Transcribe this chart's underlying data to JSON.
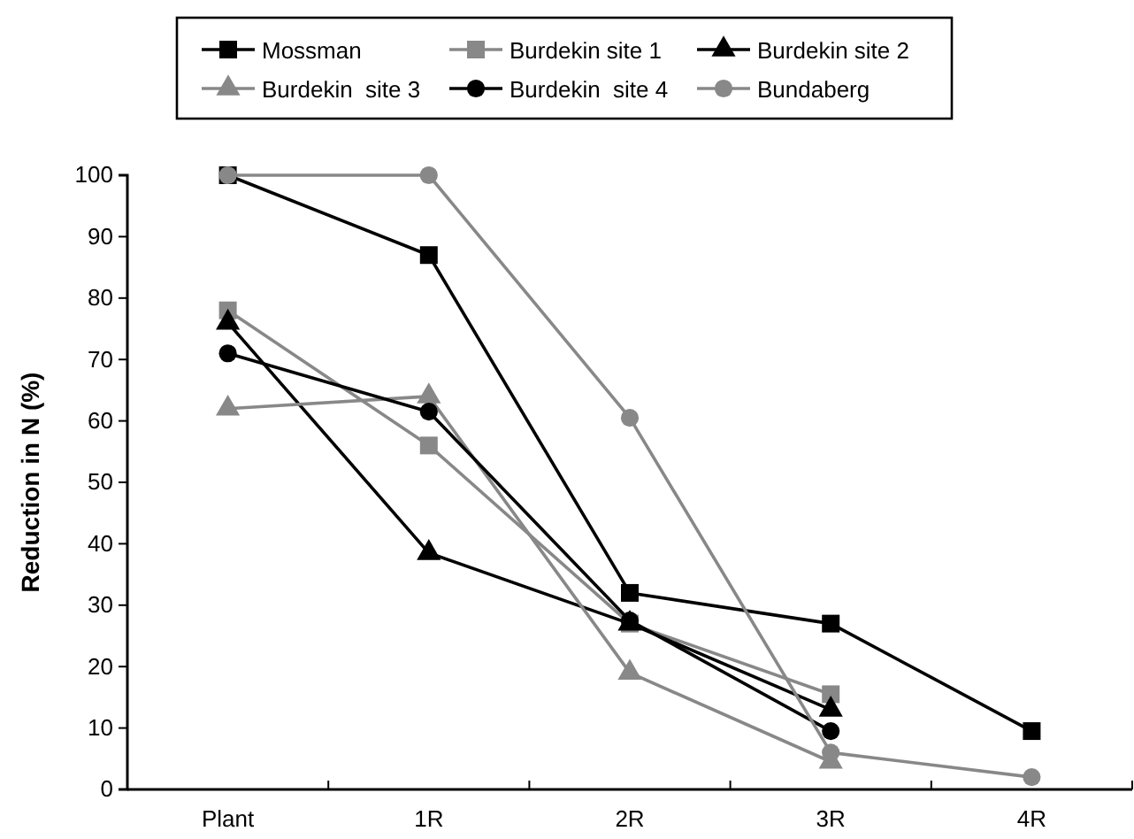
{
  "chart_data": {
    "type": "line",
    "ylabel": "Reduction in N (%)",
    "categories": [
      "Plant",
      "1R",
      "2R",
      "3R",
      "4R"
    ],
    "ylim": [
      0,
      100
    ],
    "yticks": [
      0,
      10,
      20,
      30,
      40,
      50,
      60,
      70,
      80,
      90,
      100
    ],
    "grid": false,
    "legend": "top",
    "series": [
      {
        "name": "Mossman",
        "color": "#000000",
        "marker": "square",
        "values": [
          100,
          87,
          32,
          27,
          9.5
        ]
      },
      {
        "name": "Burdekin site 1",
        "color": "#888888",
        "marker": "square",
        "values": [
          78,
          56,
          27,
          15.5,
          null
        ]
      },
      {
        "name": "Burdekin site 2",
        "color": "#000000",
        "marker": "triangle",
        "values": [
          76,
          38.5,
          27,
          13,
          null
        ]
      },
      {
        "name": "Burdekin  site 3",
        "color": "#888888",
        "marker": "triangle",
        "values": [
          62,
          64,
          19,
          4.5,
          null
        ]
      },
      {
        "name": "Burdekin  site 4",
        "color": "#000000",
        "marker": "circle",
        "values": [
          71,
          61.5,
          27.5,
          9.5,
          null
        ]
      },
      {
        "name": "Bundaberg",
        "color": "#888888",
        "marker": "circle",
        "values": [
          100,
          100,
          60.5,
          6,
          2
        ]
      }
    ]
  }
}
